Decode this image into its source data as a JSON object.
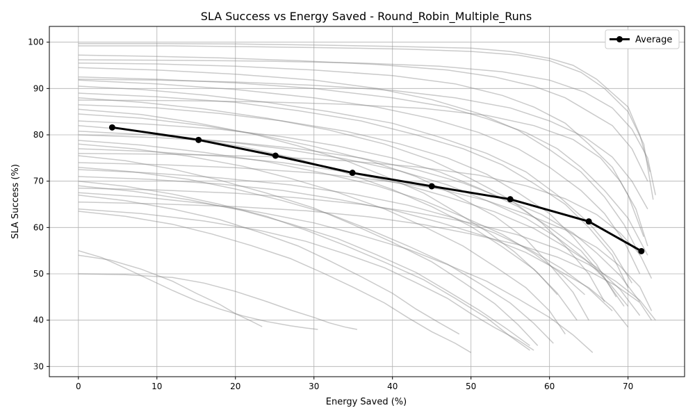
{
  "chart_data": {
    "type": "line",
    "title": "SLA Success vs Energy Saved - Round_Robin_Multiple_Runs",
    "xlabel": "Energy Saved (%)",
    "ylabel": "SLA Success (%)",
    "xlim": [
      -3.7,
      77.2
    ],
    "ylim": [
      27.8,
      103.4
    ],
    "xticks": [
      0,
      10,
      20,
      30,
      40,
      50,
      60,
      70
    ],
    "yticks": [
      30,
      40,
      50,
      60,
      70,
      80,
      90,
      100
    ],
    "grid": true,
    "legend": {
      "position": "top-right",
      "entries": [
        "Average"
      ]
    },
    "colors": {
      "average": "#000000",
      "runs": "#808080"
    },
    "series": [
      {
        "name": "Average",
        "x": [
          4.3,
          15.3,
          25.1,
          34.9,
          45.0,
          55.0,
          65.0,
          71.7
        ],
        "y": [
          81.6,
          78.9,
          75.5,
          71.8,
          68.9,
          66.1,
          61.3,
          54.9
        ]
      }
    ],
    "runs": [
      {
        "x": [
          0,
          10,
          20,
          30,
          40,
          50,
          55,
          60,
          63,
          66,
          68,
          70,
          71.5,
          72.8
        ],
        "y": [
          99.7,
          99.7,
          99.6,
          99.4,
          99.1,
          98.7,
          98.0,
          96.5,
          95.0,
          92.0,
          89.0,
          86.0,
          80.0,
          72.0
        ]
      },
      {
        "x": [
          0,
          12,
          22,
          32,
          42,
          50,
          56,
          60,
          64,
          67,
          70,
          72,
          73.2
        ],
        "y": [
          99.2,
          99.2,
          99.0,
          98.8,
          98.5,
          98.0,
          97.2,
          96.0,
          93.5,
          90.0,
          85.0,
          78.0,
          66.0
        ]
      },
      {
        "x": [
          0,
          8,
          18,
          28,
          38,
          47,
          53,
          58,
          62,
          65,
          68,
          70.5,
          72.5
        ],
        "y": [
          97.2,
          97.0,
          96.6,
          96.0,
          95.2,
          94.0,
          92.5,
          90.5,
          88.0,
          85.0,
          82.0,
          77.0,
          70.0
        ]
      },
      {
        "x": [
          0,
          10,
          20,
          30,
          40,
          48,
          54,
          58,
          62,
          65,
          68,
          70,
          72
        ],
        "y": [
          95.5,
          95.3,
          94.8,
          94.0,
          92.8,
          91.0,
          88.5,
          86.0,
          82.5,
          78.0,
          73.0,
          67.0,
          58.0
        ]
      },
      {
        "x": [
          0,
          10,
          20,
          30,
          40,
          47,
          52,
          57,
          61,
          64,
          67,
          70,
          72.5
        ],
        "y": [
          92.5,
          92.0,
          91.2,
          90.0,
          88.0,
          86.0,
          83.5,
          80.5,
          77.0,
          73.0,
          68.0,
          62.0,
          54.0
        ]
      },
      {
        "x": [
          0,
          10,
          20,
          30,
          38,
          45,
          51,
          56,
          60,
          64,
          67,
          69.5,
          71.5
        ],
        "y": [
          91.8,
          91.0,
          89.8,
          88.0,
          86.0,
          83.5,
          80.5,
          77.0,
          73.0,
          68.0,
          63.0,
          57.0,
          50.0
        ]
      },
      {
        "x": [
          0,
          8,
          16,
          24,
          32,
          40,
          46,
          52,
          57,
          61,
          65,
          68,
          70.5
        ],
        "y": [
          90.5,
          89.8,
          88.6,
          87.0,
          85.0,
          82.5,
          79.5,
          76.0,
          72.0,
          67.0,
          61.0,
          55.0,
          48.0
        ]
      },
      {
        "x": [
          0,
          10,
          20,
          28,
          36,
          43,
          49,
          54,
          58,
          62,
          65,
          68,
          70
        ],
        "y": [
          89.0,
          88.2,
          87.0,
          85.2,
          83.0,
          80.0,
          77.0,
          73.5,
          69.5,
          65.0,
          60.0,
          54.0,
          47.0
        ]
      },
      {
        "x": [
          0,
          8,
          16,
          24,
          32,
          39,
          45,
          50,
          55,
          59,
          62,
          65,
          67
        ],
        "y": [
          88.0,
          87.0,
          85.6,
          83.6,
          81.0,
          78.0,
          74.5,
          70.5,
          66.0,
          61.0,
          56.0,
          50.0,
          44.0
        ]
      },
      {
        "x": [
          0,
          10,
          18,
          26,
          34,
          41,
          47,
          52,
          56,
          60,
          63,
          66,
          68.5
        ],
        "y": [
          86.5,
          85.8,
          84.6,
          83.0,
          80.8,
          78.0,
          75.0,
          71.5,
          67.5,
          63.0,
          58.0,
          52.0,
          45.0
        ]
      },
      {
        "x": [
          0,
          8,
          16,
          23,
          30,
          37,
          43,
          48,
          53,
          57,
          60,
          63,
          65
        ],
        "y": [
          84.5,
          83.6,
          82.0,
          80.0,
          77.5,
          74.5,
          71.0,
          67.0,
          62.5,
          57.5,
          52.0,
          46.0,
          40.0
        ]
      },
      {
        "x": [
          0,
          9,
          18,
          26,
          33,
          40,
          46,
          51,
          56,
          60,
          64,
          67,
          69.5
        ],
        "y": [
          83.0,
          82.3,
          81.2,
          79.6,
          77.6,
          75.0,
          72.0,
          68.5,
          64.5,
          60.0,
          55.0,
          49.0,
          43.0
        ]
      },
      {
        "x": [
          0,
          7,
          14,
          21,
          28,
          34,
          40,
          45,
          50,
          54,
          58,
          61,
          63.5
        ],
        "y": [
          82.0,
          81.0,
          79.4,
          77.4,
          74.8,
          71.8,
          68.2,
          64.5,
          60.2,
          55.8,
          51.0,
          45.8,
          40.0
        ]
      },
      {
        "x": [
          0,
          10,
          20,
          28,
          36,
          43,
          49,
          54,
          59,
          63,
          66,
          69,
          71.5
        ],
        "y": [
          80.0,
          79.4,
          78.4,
          77.0,
          75.0,
          72.5,
          69.6,
          66.4,
          62.8,
          58.8,
          54.5,
          49.6,
          44.0
        ]
      },
      {
        "x": [
          0,
          7,
          14,
          21,
          27,
          33,
          39,
          44,
          49,
          53,
          57,
          60,
          62
        ],
        "y": [
          78.0,
          77.0,
          75.4,
          73.2,
          70.6,
          67.6,
          64.0,
          60.2,
          56.0,
          51.6,
          47.0,
          42.0,
          37.0
        ]
      },
      {
        "x": [
          0,
          9,
          18,
          26,
          34,
          41,
          47,
          53,
          58,
          62,
          66,
          69,
          71.5
        ],
        "y": [
          77.0,
          76.4,
          75.4,
          74.0,
          72.0,
          69.5,
          66.6,
          63.4,
          59.8,
          55.8,
          51.4,
          46.6,
          41.0
        ]
      },
      {
        "x": [
          0,
          6,
          12,
          18,
          24,
          30,
          35,
          40,
          45,
          49,
          53,
          56,
          58.5
        ],
        "y": [
          75.5,
          74.4,
          72.6,
          70.2,
          67.4,
          64.2,
          60.6,
          56.8,
          52.6,
          48.2,
          43.6,
          39.0,
          34.5
        ]
      },
      {
        "x": [
          0,
          10,
          20,
          30,
          38,
          46,
          52,
          57,
          62,
          66,
          69,
          71.5,
          73
        ],
        "y": [
          74.0,
          73.6,
          72.9,
          71.8,
          70.3,
          68.3,
          65.8,
          62.9,
          59.5,
          55.7,
          51.6,
          47.2,
          42.0
        ]
      },
      {
        "x": [
          0,
          7,
          14,
          20,
          26,
          32,
          37,
          42,
          47,
          51,
          55,
          58,
          60.5
        ],
        "y": [
          73.0,
          72.0,
          70.4,
          68.3,
          65.8,
          62.9,
          59.6,
          56.0,
          52.1,
          48.0,
          43.7,
          39.3,
          35.0
        ]
      },
      {
        "x": [
          0,
          9,
          18,
          26,
          33,
          40,
          46,
          52,
          57,
          61,
          65,
          68,
          70
        ],
        "y": [
          71.0,
          70.4,
          69.4,
          68.0,
          66.1,
          63.8,
          61.1,
          58.0,
          54.6,
          50.9,
          47.0,
          42.8,
          38.5
        ]
      },
      {
        "x": [
          0,
          6,
          12,
          18,
          24,
          29,
          34,
          39,
          44,
          48,
          52,
          55,
          57.5
        ],
        "y": [
          70.0,
          68.9,
          67.2,
          65.0,
          62.4,
          59.4,
          56.1,
          52.5,
          48.7,
          44.7,
          40.5,
          36.5,
          33.5
        ]
      },
      {
        "x": [
          0,
          10,
          20,
          28,
          36,
          43,
          50,
          56,
          61,
          65,
          68.5,
          71.5,
          73.5
        ],
        "y": [
          68.5,
          68.1,
          67.4,
          66.4,
          65.0,
          63.2,
          61.0,
          58.4,
          55.4,
          52.0,
          48.3,
          44.3,
          40.0
        ]
      },
      {
        "x": [
          0,
          8,
          16,
          23,
          30,
          36,
          42,
          47,
          52,
          56,
          60,
          63,
          65.5
        ],
        "y": [
          67.5,
          66.6,
          65.2,
          63.3,
          61.0,
          58.3,
          55.3,
          52.0,
          48.4,
          44.6,
          40.6,
          36.8,
          33.0
        ]
      },
      {
        "x": [
          0,
          10,
          20,
          29,
          37,
          44,
          50,
          56,
          61,
          65,
          68.5,
          71.5,
          73
        ],
        "y": [
          65.5,
          65.1,
          64.5,
          63.6,
          62.3,
          60.6,
          58.6,
          56.3,
          53.6,
          50.6,
          47.4,
          43.8,
          40.0
        ]
      },
      {
        "x": [
          0,
          6,
          12,
          17,
          22,
          27,
          31,
          35,
          39,
          42,
          45,
          48,
          50
        ],
        "y": [
          63.5,
          62.4,
          60.7,
          58.6,
          56.1,
          53.3,
          50.3,
          47.1,
          43.7,
          40.5,
          37.5,
          35.0,
          33.0
        ]
      },
      {
        "x": [
          0,
          8,
          16,
          23,
          29,
          34,
          39,
          43,
          47,
          50,
          53,
          56,
          58
        ],
        "y": [
          64.0,
          63.0,
          61.4,
          59.4,
          57.0,
          54.3,
          51.3,
          48.1,
          44.7,
          41.4,
          38.4,
          35.7,
          33.5
        ]
      },
      {
        "x": [
          0,
          3,
          6,
          9,
          12,
          15,
          18,
          21,
          24,
          27,
          29,
          30.5
        ],
        "y": [
          55.0,
          53.5,
          51.2,
          48.8,
          46.4,
          44.2,
          42.4,
          40.9,
          39.7,
          38.8,
          38.3,
          38.0
        ]
      },
      {
        "x": [
          0,
          4,
          8,
          12,
          15,
          18,
          20,
          22,
          23.4
        ],
        "y": [
          54.0,
          53.0,
          51.0,
          48.4,
          45.8,
          43.4,
          41.4,
          39.8,
          38.6
        ]
      },
      {
        "x": [
          0,
          6,
          12,
          16,
          20,
          24,
          27,
          30,
          32,
          34,
          35.5
        ],
        "y": [
          50.0,
          49.8,
          49.2,
          48.0,
          46.2,
          44.0,
          42.2,
          40.6,
          39.4,
          38.5,
          38.0
        ]
      },
      {
        "x": [
          0,
          12,
          24,
          34,
          44,
          52,
          58,
          63,
          66.5,
          69,
          71,
          72.5
        ],
        "y": [
          87.5,
          87.4,
          87.1,
          86.6,
          85.7,
          84.2,
          82.0,
          79.0,
          75.0,
          70.0,
          64.0,
          56.0
        ]
      },
      {
        "x": [
          0,
          10,
          20,
          30,
          38,
          45,
          51,
          56,
          60,
          64,
          67,
          69.5,
          71.5
        ],
        "y": [
          94.5,
          94.0,
          93.1,
          91.8,
          90.0,
          87.6,
          84.6,
          81.0,
          76.8,
          72.0,
          66.6,
          60.6,
          54.0
        ]
      },
      {
        "x": [
          0,
          9,
          18,
          26,
          34,
          41,
          47,
          52,
          57,
          61,
          64.5,
          67.5,
          70
        ],
        "y": [
          80.8,
          80.0,
          78.7,
          77.0,
          74.8,
          72.2,
          69.2,
          65.8,
          62.0,
          57.8,
          53.2,
          48.2,
          43.0
        ]
      },
      {
        "x": [
          0,
          12,
          24,
          34,
          43,
          51,
          57,
          62,
          66,
          69,
          71.5,
          73
        ],
        "y": [
          76.0,
          75.8,
          75.3,
          74.4,
          73.1,
          71.3,
          69.0,
          66.2,
          62.8,
          58.8,
          54.2,
          49.0
        ]
      },
      {
        "x": [
          0,
          8,
          15,
          22,
          28,
          34,
          39,
          44,
          48,
          52,
          55.5,
          58.5,
          61
        ],
        "y": [
          85.5,
          84.4,
          82.6,
          80.3,
          77.6,
          74.5,
          71.1,
          67.4,
          63.4,
          59.2,
          54.8,
          50.2,
          45.5
        ]
      },
      {
        "x": [
          0,
          7,
          14,
          21,
          27,
          33,
          38,
          43,
          47,
          51,
          54.5,
          57.5
        ],
        "y": [
          69.0,
          67.8,
          66.0,
          63.6,
          60.8,
          57.6,
          54.1,
          50.3,
          46.3,
          42.2,
          38.2,
          34.5
        ]
      },
      {
        "x": [
          0,
          10,
          20,
          30,
          40,
          48,
          55,
          60,
          64.5,
          68,
          70.5,
          72.5
        ],
        "y": [
          92.0,
          91.8,
          91.4,
          90.7,
          89.6,
          88.0,
          85.8,
          83.0,
          79.5,
          75.2,
          70.0,
          64.0
        ]
      },
      {
        "x": [
          0,
          9,
          18,
          27,
          35,
          42,
          48,
          53,
          57.5,
          61.5,
          65,
          68
        ],
        "y": [
          72.5,
          71.8,
          70.7,
          69.2,
          67.2,
          64.8,
          62.0,
          58.8,
          55.2,
          51.2,
          46.8,
          42.0
        ]
      },
      {
        "x": [
          0,
          12,
          24,
          36,
          46,
          54,
          60,
          64.5,
          68,
          70.5,
          72.5,
          73.5
        ],
        "y": [
          96.2,
          96.1,
          95.9,
          95.5,
          94.8,
          93.6,
          91.8,
          89.2,
          85.8,
          81.2,
          75.0,
          67.0
        ]
      },
      {
        "x": [
          0,
          8,
          16,
          24,
          31,
          38,
          44,
          49,
          54,
          58,
          61.5,
          64.5
        ],
        "y": [
          78.8,
          77.8,
          76.2,
          74.2,
          71.8,
          69.0,
          65.8,
          62.3,
          58.5,
          54.4,
          50.0,
          45.5
        ]
      },
      {
        "x": [
          0,
          6,
          12,
          18,
          23,
          28,
          32,
          36,
          40,
          43,
          46,
          48.5
        ],
        "y": [
          67.0,
          65.8,
          64.0,
          61.7,
          59.0,
          56.0,
          52.8,
          49.4,
          45.8,
          42.4,
          39.4,
          37.0
        ]
      }
    ]
  }
}
